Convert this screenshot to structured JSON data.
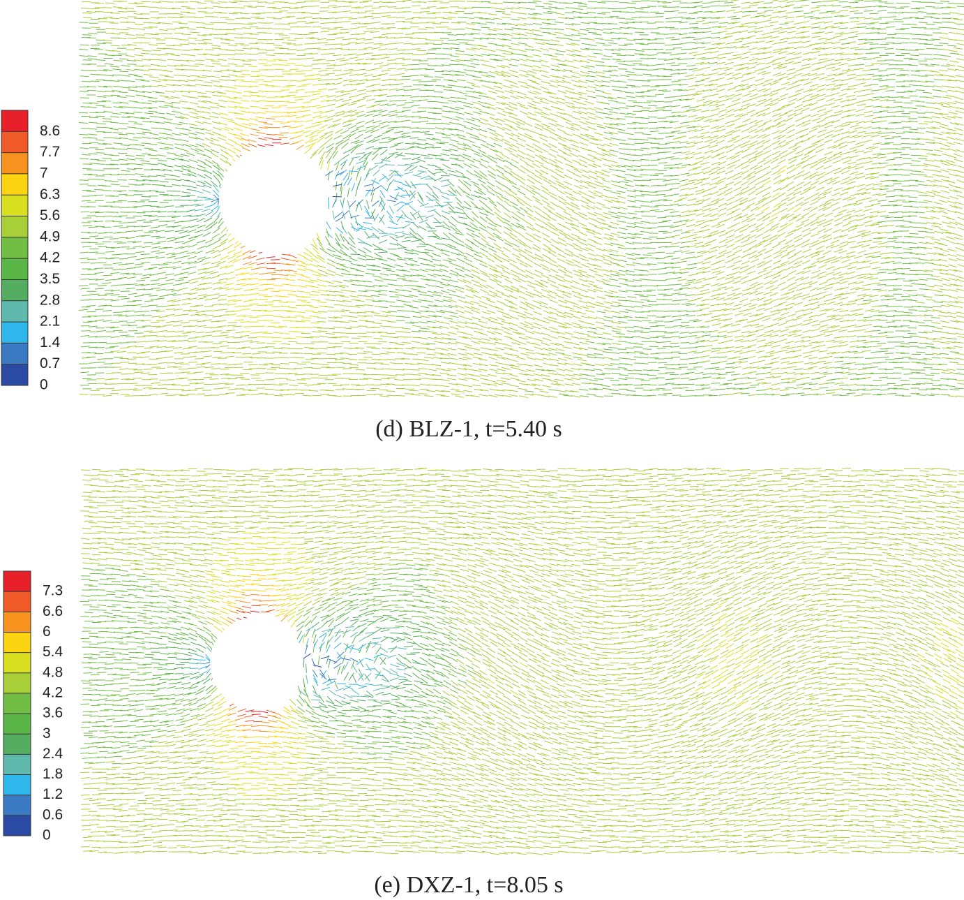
{
  "chart_data": [
    {
      "type": "vector-field",
      "title": "(d) BLZ-1, t=5.40 s",
      "colorbar_ticks": [
        8.6,
        7.7,
        7,
        6.3,
        5.6,
        4.9,
        4.2,
        3.5,
        2.8,
        2.1,
        1.4,
        0.7,
        0
      ],
      "colors": [
        "#e8202a",
        "#f05a28",
        "#f7921e",
        "#fcd412",
        "#d9e01f",
        "#a8cf38",
        "#72be44",
        "#5ab646",
        "#55ad62",
        "#5fb9ad",
        "#2fb6ea",
        "#3a7bc4",
        "#2b4aa3"
      ]
    },
    {
      "type": "vector-field",
      "title": "(e) DXZ-1, t=8.05 s",
      "colorbar_ticks": [
        7.3,
        6.6,
        6,
        5.4,
        4.8,
        4.2,
        3.6,
        3,
        2.4,
        1.8,
        1.2,
        0.6,
        0
      ],
      "colors": [
        "#e8202a",
        "#f05a28",
        "#f7921e",
        "#fcd412",
        "#d9e01f",
        "#a8cf38",
        "#72be44",
        "#5ab646",
        "#55ad62",
        "#5fb9ad",
        "#2fb6ea",
        "#3a7bc4",
        "#2b4aa3"
      ]
    }
  ]
}
